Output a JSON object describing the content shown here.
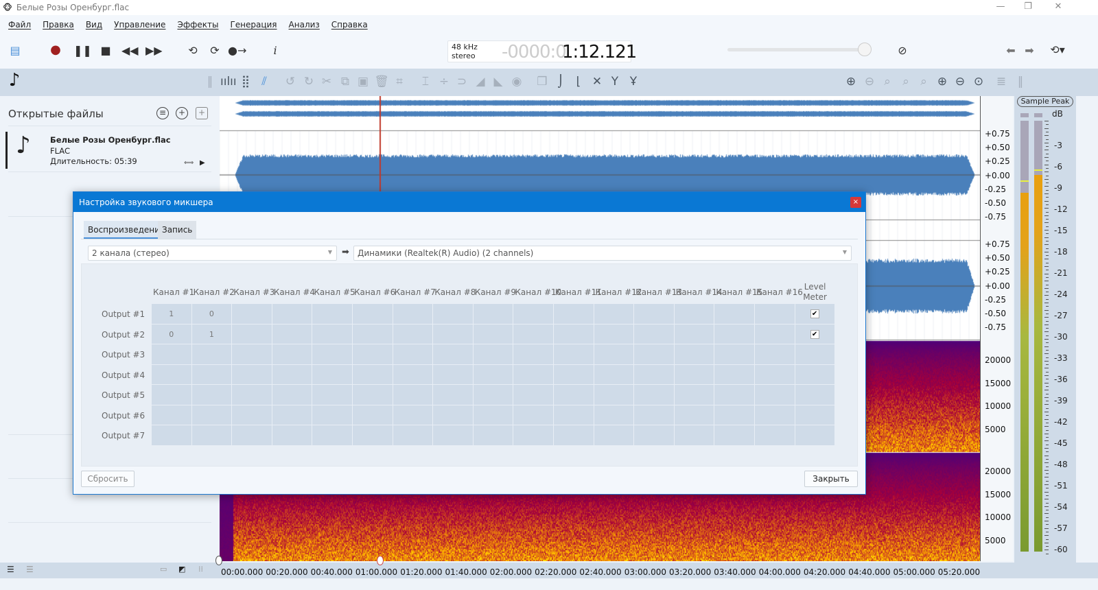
{
  "window": {
    "title": "Белые Розы Оренбург.flac",
    "minimize": "—",
    "maximize": "❐",
    "close": "✕"
  },
  "menu": [
    "Файл",
    "Правка",
    "Вид",
    "Управление",
    "Эффекты",
    "Генерация",
    "Анализ",
    "Справка"
  ],
  "transport": {
    "sample_rate": "48 kHz",
    "channels": "stereo",
    "time_dim": "-0000:0",
    "time": "1:12.121",
    "volume_percent": 95
  },
  "colors": {
    "accent": "#0a78d4",
    "waveform": "#4a80bb",
    "playhead": "#c0392b",
    "record": "#a02020"
  },
  "sidebar": {
    "title": "Открытые файлы",
    "file": {
      "name": "Белые Розы Оренбург.flac",
      "format": "FLAC",
      "duration": "Длительность: 05:39"
    }
  },
  "axes": {
    "amplitude": [
      "+0.75",
      "+0.50",
      "+0.25",
      "+0.00",
      "-0.25",
      "-0.50",
      "-0.75"
    ],
    "frequency": [
      "20000",
      "15000",
      "10000",
      "5000"
    ],
    "time": [
      "00:00.000",
      "00:20.000",
      "00:40.000",
      "01:00.000",
      "01:20.000",
      "01:40.000",
      "02:00.000",
      "02:20.000",
      "02:40.000",
      "03:00.000",
      "03:20.000",
      "03:40.000",
      "04:00.000",
      "04:20.000",
      "04:40.000",
      "05:00.000",
      "05:20.000"
    ]
  },
  "meter": {
    "mode": "Sample Peak",
    "unit": "dB",
    "scale": [
      "-3",
      "-6",
      "-9",
      "-12",
      "-15",
      "-18",
      "-21",
      "-24",
      "-27",
      "-30",
      "-33",
      "-36",
      "-39",
      "-42",
      "-45",
      "-48",
      "-51",
      "-54",
      "-57",
      "-60"
    ],
    "left_db": -10,
    "right_db": -7.5,
    "left_peak_db": -8.5,
    "right_peak_db": -7
  },
  "dialog": {
    "title": "Настройка звукового микшера",
    "close": "×",
    "tabs": [
      "Воспроизведение",
      "Запись"
    ],
    "source": "2 канала (стерео)",
    "device": "Динамики (Realtek(R) Audio) (2 channels)",
    "columns": [
      "Канал #1",
      "Канал #2",
      "Канал #3",
      "Канал #4",
      "Канал #5",
      "Канал #6",
      "Канал #7",
      "Канал #8",
      "Канал #9",
      "Канал #10",
      "Канал #11",
      "Канал #12",
      "Канал #13",
      "Канал #14",
      "Канал #15",
      "Канал #16"
    ],
    "level_meter": [
      "Level",
      "Meter"
    ],
    "rows": [
      {
        "label": "Output #1",
        "values": [
          "1",
          "0"
        ],
        "meter": true
      },
      {
        "label": "Output #2",
        "values": [
          "0",
          "1"
        ],
        "meter": true
      },
      {
        "label": "Output #3",
        "values": [],
        "meter": false
      },
      {
        "label": "Output #4",
        "values": [],
        "meter": false
      },
      {
        "label": "Output #5",
        "values": [],
        "meter": false
      },
      {
        "label": "Output #6",
        "values": [],
        "meter": false
      },
      {
        "label": "Output #7",
        "values": [],
        "meter": false
      }
    ],
    "reset": "Сбросить",
    "close_button": "Закрыть"
  }
}
